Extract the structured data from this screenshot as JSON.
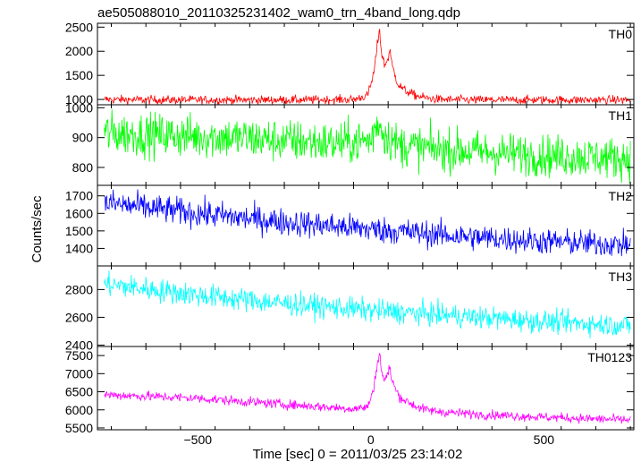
{
  "chart_data": {
    "type": "line",
    "title": "ae505088010_20110325231402_wam0_trn_4band_long.qdp",
    "xlabel": "Time [sec] 0 = 2011/03/25 23:14:02",
    "ylabel": "Counts/sec",
    "xlim": [
      -790,
      760
    ],
    "xticks": [
      -500,
      0,
      500
    ],
    "xtick_labels": [
      "−500",
      "0",
      "500"
    ],
    "panels": [
      {
        "name": "TH0",
        "color": "#ff0000",
        "ylim": [
          890,
          2580
        ],
        "yticks": [
          1000,
          1500,
          2000,
          2500
        ],
        "ytick_labels": [
          "1000",
          "1500",
          "2000",
          "2500"
        ],
        "x": [
          -770,
          -600,
          -400,
          -200,
          -50,
          -10,
          0,
          10,
          20,
          25,
          30,
          40,
          50,
          55,
          60,
          70,
          80,
          100,
          130,
          160,
          200,
          300,
          500,
          750
        ],
        "values": [
          1000,
          990,
          990,
          990,
          1000,
          1080,
          1300,
          1600,
          2200,
          2500,
          2000,
          1700,
          1850,
          2050,
          1750,
          1500,
          1300,
          1180,
          1080,
          1030,
          1000,
          990,
          990,
          990
        ]
      },
      {
        "name": "TH1",
        "color": "#00ff00",
        "ylim": [
          740,
          1010
        ],
        "yticks": [
          800,
          900,
          1000
        ],
        "ytick_labels": [
          "800",
          "900",
          "1000"
        ],
        "x": [
          -770,
          -400,
          -100,
          0,
          20,
          40,
          80,
          200,
          500,
          750
        ],
        "values": [
          915,
          900,
          880,
          890,
          955,
          910,
          875,
          860,
          840,
          830
        ]
      },
      {
        "name": "TH2",
        "color": "#0000ff",
        "ylim": [
          1300,
          1760
        ],
        "yticks": [
          1400,
          1500,
          1600,
          1700
        ],
        "ytick_labels": [
          "1400",
          "1500",
          "1600",
          "1700"
        ],
        "x": [
          -770,
          -500,
          -250,
          0,
          250,
          500,
          750
        ],
        "values": [
          1660,
          1600,
          1550,
          1510,
          1470,
          1440,
          1420
        ]
      },
      {
        "name": "TH3",
        "color": "#00ffff",
        "ylim": [
          2390,
          2970
        ],
        "yticks": [
          2400,
          2600,
          2800
        ],
        "ytick_labels": [
          "2400",
          "2600",
          "2800"
        ],
        "x": [
          -770,
          -500,
          -250,
          0,
          250,
          500,
          750
        ],
        "values": [
          2840,
          2760,
          2700,
          2650,
          2610,
          2570,
          2540
        ]
      },
      {
        "name": "TH0123",
        "color": "#ff00ff",
        "ylim": [
          5450,
          7750
        ],
        "yticks": [
          5500,
          6000,
          6500,
          7000,
          7500
        ],
        "ytick_labels": [
          "5500",
          "6000",
          "6500",
          "7000",
          "7500"
        ],
        "x": [
          -770,
          -500,
          -250,
          -50,
          -10,
          0,
          10,
          20,
          25,
          30,
          40,
          50,
          55,
          60,
          70,
          80,
          100,
          130,
          160,
          200,
          300,
          500,
          750
        ],
        "values": [
          6420,
          6320,
          6150,
          6030,
          6080,
          6300,
          6700,
          7350,
          7620,
          7100,
          6800,
          7000,
          7200,
          6850,
          6600,
          6400,
          6250,
          6100,
          6000,
          5950,
          5880,
          5800,
          5720
        ]
      }
    ],
    "grid": false,
    "legend": "none"
  }
}
